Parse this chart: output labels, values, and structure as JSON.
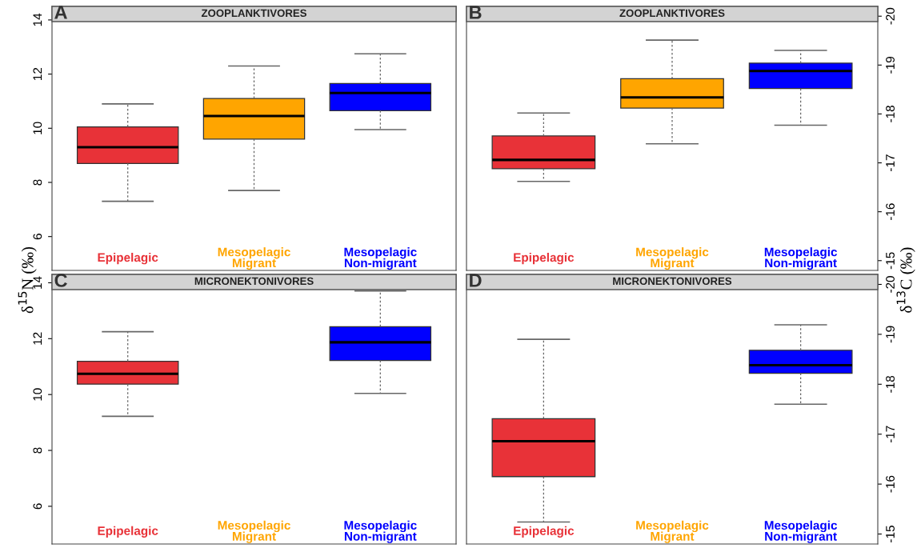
{
  "chart_data": [
    {
      "type": "box",
      "title": "ZOOPLANKTIVORES",
      "annotations": [
        "A"
      ],
      "ylabel": "δ$^{15}$N (‰)",
      "categories": [
        "Epipelagic",
        "Mesopelagic\nMigrant",
        "Mesopelagic\nNon-migrant"
      ],
      "colors": [
        "#e83238",
        "#ffa500",
        "#0000ff"
      ],
      "boxes": [
        {
          "low": 7.3,
          "q1": 8.7,
          "median": 9.3,
          "q3": 10.05,
          "high": 10.9
        },
        {
          "low": 7.7,
          "q1": 9.6,
          "median": 10.45,
          "q3": 11.1,
          "high": 12.3
        },
        {
          "low": 9.95,
          "q1": 10.65,
          "median": 11.3,
          "q3": 11.65,
          "high": 12.75
        }
      ],
      "ylim": [
        4.75,
        14.5
      ],
      "yticks": [
        6,
        8,
        10,
        12,
        14
      ],
      "tick_labels": "y",
      "grid": false
    },
    {
      "type": "box",
      "title": "ZOOPLANKTIVORES",
      "annotations": [
        "B"
      ],
      "ylabel": "δ$^{13}$C (‰)",
      "categories": [
        "Epipelagic",
        "Mesopelagic\nMigrant",
        "Mesopelagic\nNon-migrant"
      ],
      "colors": [
        "#e83238",
        "#ffa500",
        "#0000ff"
      ],
      "boxes": [
        {
          "low": -18.02,
          "q1": -17.55,
          "median": -17.06,
          "q3": -16.88,
          "high": -16.62
        },
        {
          "low": -19.51,
          "q1": -18.72,
          "median": -18.34,
          "q3": -18.12,
          "high": -17.39
        },
        {
          "low": -19.3,
          "q1": -19.04,
          "median": -18.88,
          "q3": -18.52,
          "high": -17.77
        }
      ],
      "ylim": [
        -14.8,
        -20.2
      ],
      "yticks": [
        -20,
        -19,
        -18,
        -17,
        -16,
        -15
      ],
      "tick_labels": "y",
      "grid": false
    },
    {
      "type": "box",
      "title": "MICRONEKTONIVORES",
      "annotations": [
        "C"
      ],
      "categories": [
        "Epipelagic",
        "Mesopelagic\nMigrant",
        "Mesopelagic\nNon-migrant"
      ],
      "colors": [
        "#e83238",
        "#ffa500",
        "#0000ff"
      ],
      "boxes": [
        {
          "low": 9.22,
          "q1": 10.37,
          "median": 10.74,
          "q3": 11.19,
          "high": 12.25
        },
        null,
        {
          "low": 10.04,
          "q1": 11.22,
          "median": 11.87,
          "q3": 12.43,
          "high": 13.71
        }
      ],
      "ylim": [
        4.65,
        14.3
      ],
      "yticks": [
        6,
        8,
        10,
        12,
        14
      ],
      "tick_labels": "y",
      "grid": false
    },
    {
      "type": "box",
      "title": "MICRONEKTONIVORES",
      "annotations": [
        "D"
      ],
      "categories": [
        "Epipelagic",
        "Mesopelagic\nMigrant",
        "Mesopelagic\nNon-migrant"
      ],
      "colors": [
        "#e83238",
        "#ffa500",
        "#0000ff"
      ],
      "boxes": [
        {
          "low": -18.9,
          "q1": -17.31,
          "median": -16.86,
          "q3": -16.15,
          "high": -15.24
        },
        null,
        {
          "low": -19.19,
          "q1": -18.68,
          "median": -18.38,
          "q3": -18.22,
          "high": -17.6
        }
      ],
      "ylim": [
        -14.8,
        -20.2
      ],
      "yticks": [
        -20,
        -19,
        -18,
        -17,
        -16,
        -15
      ],
      "tick_labels": "y",
      "grid": false
    }
  ]
}
